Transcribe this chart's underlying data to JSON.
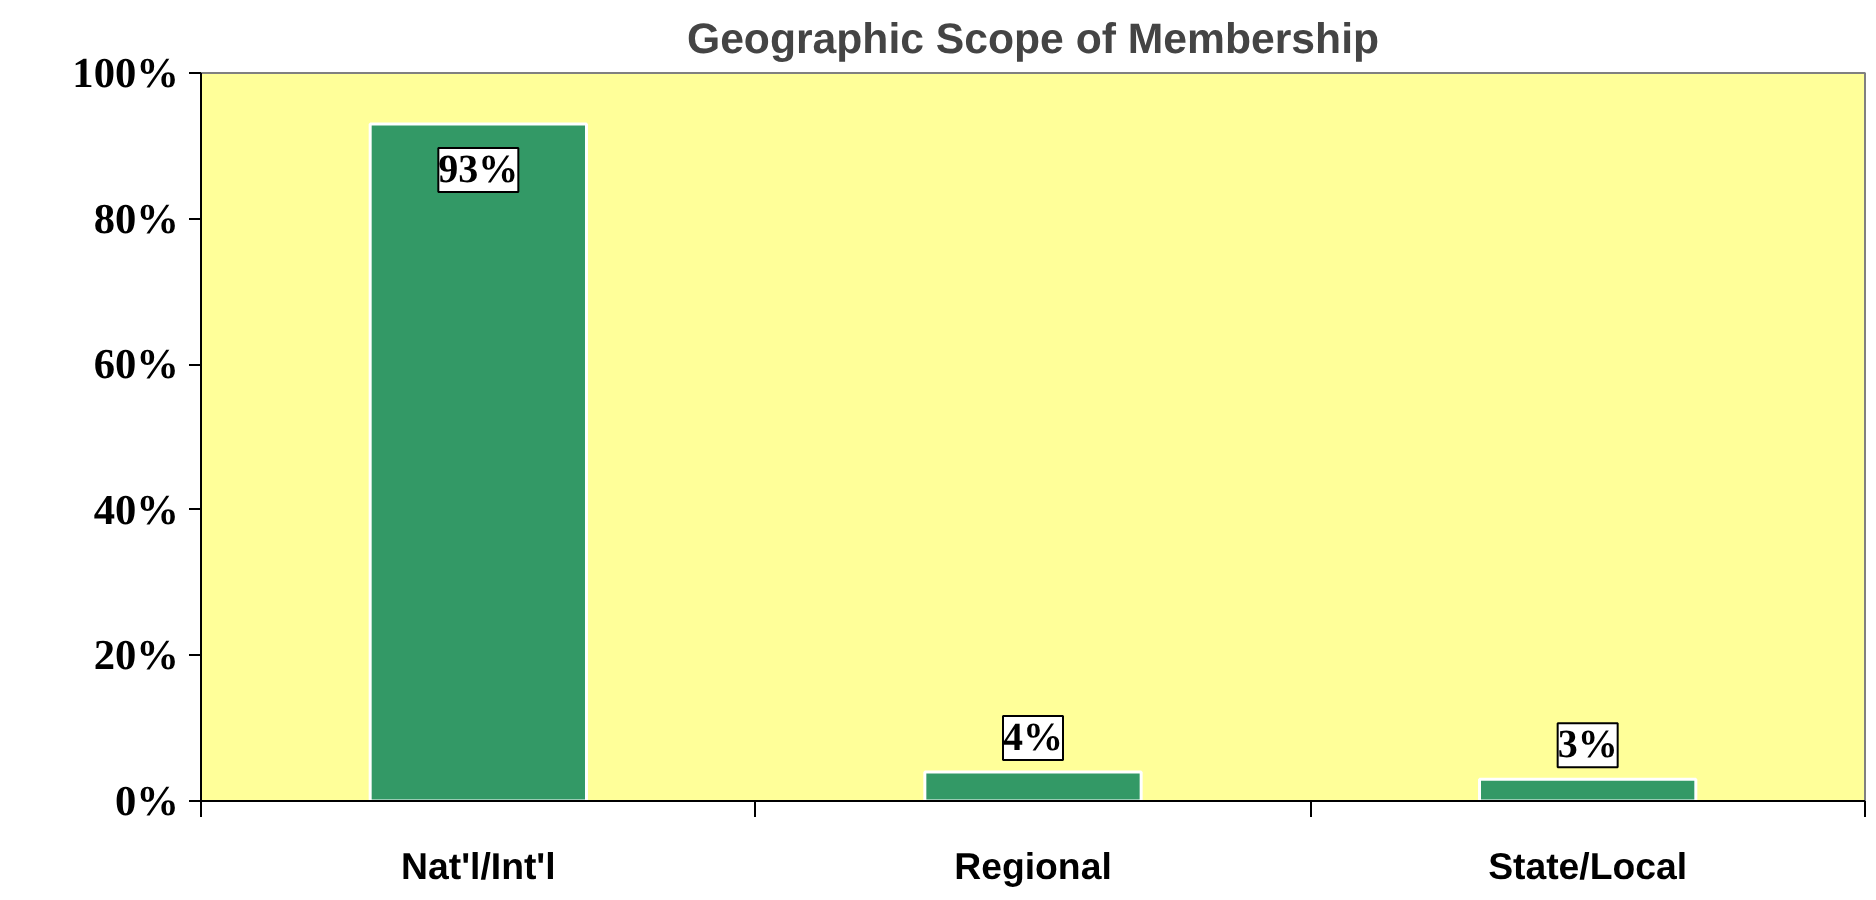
{
  "chart_data": {
    "type": "bar",
    "title": "Geographic Scope of Membership",
    "categories": [
      "Nat'l/Int'l",
      "Regional",
      "State/Local"
    ],
    "values": [
      93,
      4,
      3
    ],
    "value_labels": [
      "93%",
      "4%",
      "3%"
    ],
    "color": "#339966",
    "ylim": [
      0,
      100
    ],
    "yticks": [
      {
        "value": 0,
        "label": "0%"
      },
      {
        "value": 20,
        "label": "20%"
      },
      {
        "value": 40,
        "label": "40%"
      },
      {
        "value": 60,
        "label": "60%"
      },
      {
        "value": 80,
        "label": "80%"
      },
      {
        "value": 100,
        "label": "100%"
      }
    ],
    "grid": false
  }
}
